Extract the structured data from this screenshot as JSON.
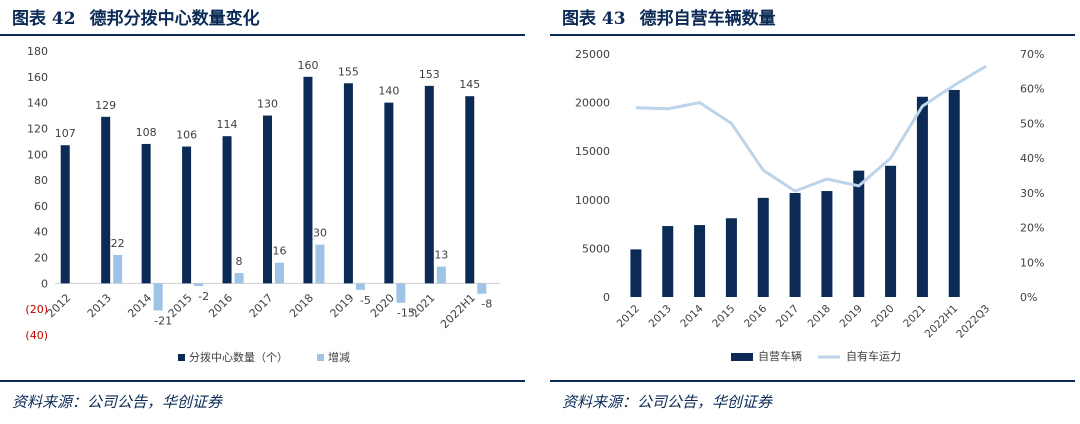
{
  "figures": [
    {
      "number": "图表 42",
      "title": "德邦分拨中心数量变化",
      "source": "资料来源：公司公告，华创证券"
    },
    {
      "number": "图表 43",
      "title": "德邦自营车辆数量",
      "source": "资料来源：公司公告，华创证券"
    }
  ],
  "colors": {
    "navy": "#0b2a55",
    "light_blue": "#9dc3e6",
    "line_blue": "#bcd3ea",
    "negative_tick": "#c00000",
    "title": "#0b2a55"
  },
  "chart_data": [
    {
      "type": "bar",
      "categories": [
        "2012",
        "2013",
        "2014",
        "2015",
        "2016",
        "2017",
        "2018",
        "2019",
        "2020",
        "2021",
        "2022H1"
      ],
      "series": [
        {
          "name": "分拨中心数量（个）",
          "values": [
            107,
            129,
            108,
            106,
            114,
            130,
            160,
            155,
            140,
            153,
            145
          ],
          "color": "#0b2a55"
        },
        {
          "name": "增减",
          "values": [
            null,
            22,
            -21,
            -2,
            8,
            16,
            30,
            -5,
            -15,
            13,
            -8
          ],
          "color": "#9dc3e6"
        }
      ],
      "ylim": [
        -40,
        180
      ],
      "yticks": [
        "180",
        "160",
        "140",
        "120",
        "100",
        "80",
        "60",
        "40",
        "20",
        "0",
        "(20)",
        "(40)"
      ],
      "ytick_values": [
        180,
        160,
        140,
        120,
        100,
        80,
        60,
        40,
        20,
        0,
        -20,
        -40
      ],
      "data_labels": true,
      "grid": false,
      "legend": "bottom"
    },
    {
      "type": "bar",
      "categories": [
        "2012",
        "2013",
        "2014",
        "2015",
        "2016",
        "2017",
        "2018",
        "2019",
        "2020",
        "2021",
        "2022H1",
        "2022Q3"
      ],
      "series": [
        {
          "name": "自营车辆",
          "values": [
            4900,
            7300,
            7400,
            8100,
            10200,
            10700,
            10900,
            13000,
            13500,
            20600,
            21300,
            null
          ],
          "color": "#0b2a55",
          "axis": "left"
        },
        {
          "name": "自有车运力",
          "values": [
            0.545,
            0.542,
            0.56,
            0.5,
            0.365,
            0.305,
            0.34,
            0.32,
            0.4,
            0.55,
            0.61,
            0.665
          ],
          "color": "#bcd3ea",
          "axis": "right",
          "kind": "line"
        }
      ],
      "ylim": [
        0,
        25000
      ],
      "yticks": [
        "25000",
        "20000",
        "15000",
        "10000",
        "5000",
        "0"
      ],
      "ytick_values": [
        25000,
        20000,
        15000,
        10000,
        5000,
        0
      ],
      "y2lim": [
        0,
        0.7
      ],
      "y2ticks": [
        "70%",
        "60%",
        "50%",
        "40%",
        "30%",
        "20%",
        "10%",
        "0%"
      ],
      "y2tick_values": [
        0.7,
        0.6,
        0.5,
        0.4,
        0.3,
        0.2,
        0.1,
        0
      ],
      "grid": false,
      "legend": "bottom"
    }
  ]
}
